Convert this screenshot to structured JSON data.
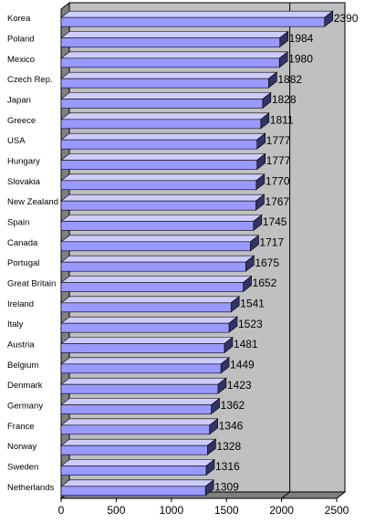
{
  "chart_data": {
    "type": "bar",
    "orientation": "horizontal",
    "style": "3d",
    "categories": [
      "Korea",
      "Poland",
      "Mexico",
      "Czech Rep.",
      "Japan",
      "Greece",
      "USA",
      "Hungary",
      "Slovakia",
      "New Zealand",
      "Spain",
      "Canada",
      "Portugal",
      "Great Britain",
      "Ireland",
      "Italy",
      "Austria",
      "Belgium",
      "Denmark",
      "Germany",
      "France",
      "Norway",
      "Sweden",
      "Netherlands"
    ],
    "values": [
      2390,
      1984,
      1980,
      1882,
      1828,
      1811,
      1777,
      1777,
      1770,
      1767,
      1745,
      1717,
      1675,
      1652,
      1541,
      1523,
      1481,
      1449,
      1423,
      1362,
      1346,
      1328,
      1316,
      1309
    ],
    "xlim": [
      0,
      2500
    ],
    "ticks": [
      0,
      500,
      1000,
      1500,
      2000,
      2500
    ],
    "gridlines": [
      2000
    ],
    "grid": true,
    "legend": "none",
    "title": "",
    "xlabel": "",
    "ylabel": "",
    "colors": {
      "bar_front": "#9999ff",
      "bar_top": "#ccccff",
      "bar_side": "#333366",
      "back_wall": "#c0c0c0",
      "floor_wall": "#808080",
      "gridline": "#000000"
    }
  }
}
